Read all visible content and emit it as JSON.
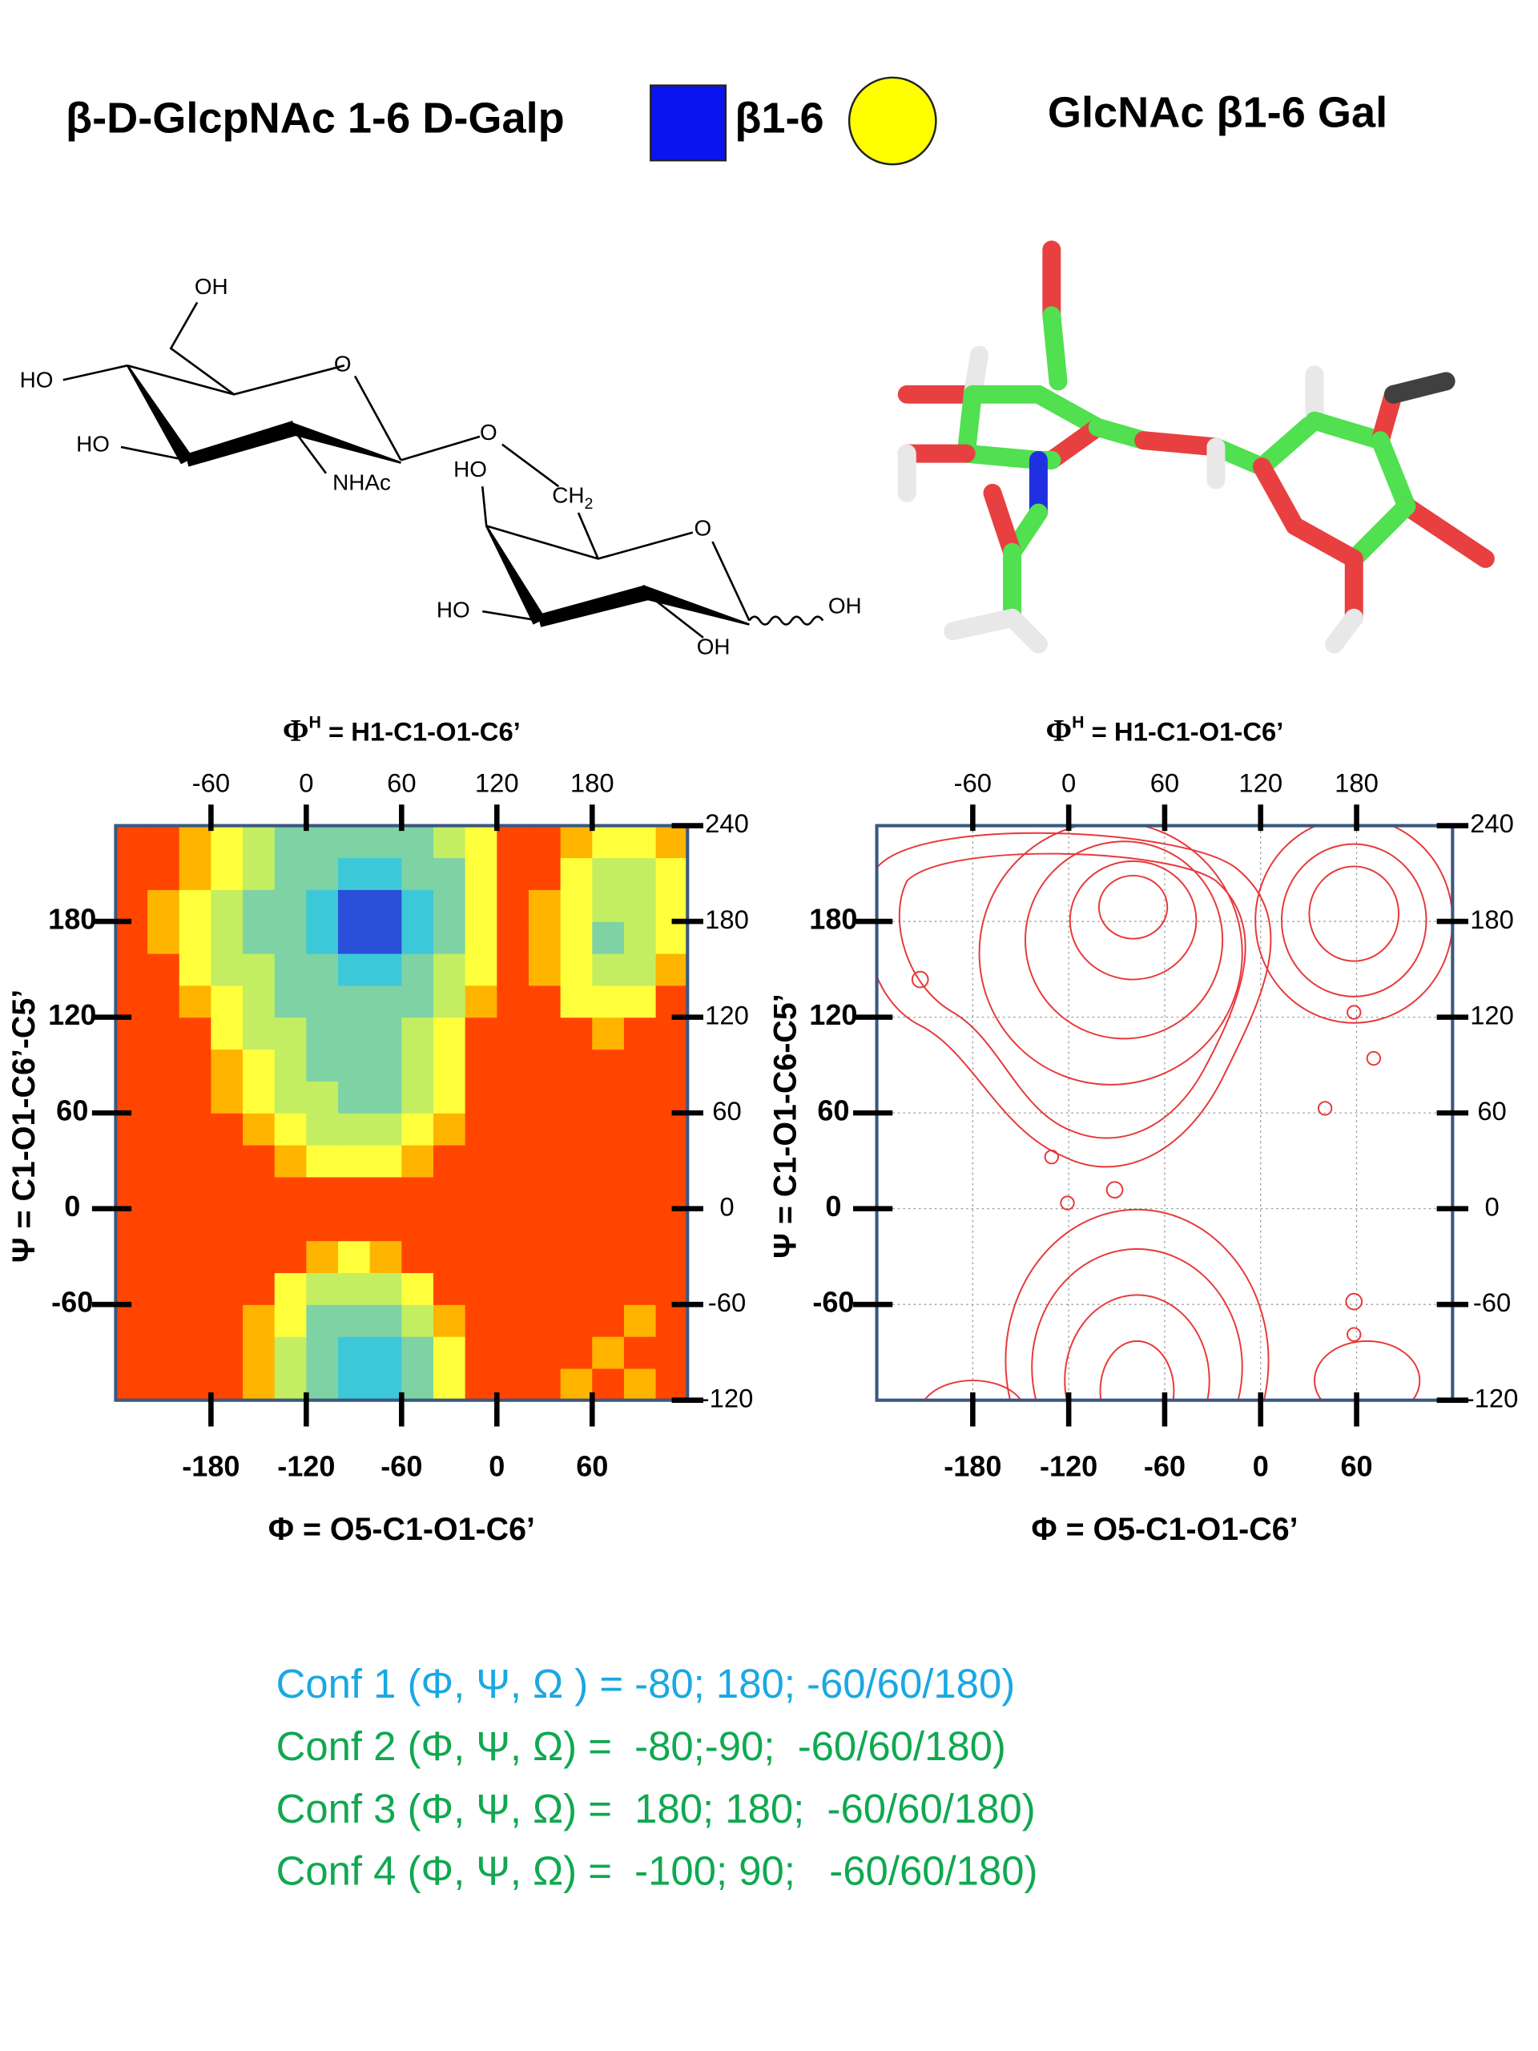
{
  "header": {
    "left": "β-D-GlcpNAc 1-6 D-Galp",
    "linkage": "β1-6",
    "right": "GlcNAc β1-6 Gal"
  },
  "structure": {
    "labels": [
      "OH",
      "HO",
      "O",
      "HO",
      "NHAc",
      "O",
      "HO",
      "O",
      "HO",
      "OH",
      "OH"
    ],
    "ch": "CH",
    "sub": "2"
  },
  "chart_data": [
    {
      "type": "heatmap",
      "x2label": {
        "symbol": "Φ",
        "sup": "H",
        "rest": " = H1-C1-O1-C6’"
      },
      "xlabel": "Φ = O5-C1-O1-C6’",
      "ylabel": "Ψ = C1-O1-C6’-C5’",
      "xlim": [
        -240,
        120
      ],
      "xticks": [
        -180,
        -120,
        -60,
        0,
        60
      ],
      "x2lim": [
        -120,
        240
      ],
      "x2ticks": [
        -60,
        0,
        60,
        120,
        180
      ],
      "ylim": [
        -120,
        240
      ],
      "yticks": [
        180,
        120,
        60,
        0,
        -60
      ],
      "y2lim": [
        -120,
        240
      ],
      "y2ticks": [
        240,
        180,
        120,
        60,
        0,
        -60,
        -120
      ],
      "grid": false,
      "colorscale": [
        "#2a4fd8",
        "#3cc8d8",
        "#7fd2a4",
        "#c4ee62",
        "#ffff3c",
        "#ffb400",
        "#ff4500"
      ],
      "x": [
        -230,
        -210,
        -190,
        -170,
        -150,
        -130,
        -110,
        -90,
        -70,
        -50,
        -30,
        -10,
        10,
        30,
        50,
        70,
        90,
        110
      ],
      "y": [
        -110,
        -90,
        -70,
        -50,
        -30,
        -10,
        10,
        30,
        50,
        70,
        90,
        110,
        130,
        150,
        170,
        190,
        210,
        230
      ],
      "z": [
        [
          6,
          6,
          6,
          6,
          5,
          3,
          2,
          1,
          1,
          2,
          4,
          6,
          6,
          6,
          5,
          6,
          5,
          6
        ],
        [
          6,
          6,
          6,
          6,
          5,
          3,
          2,
          1,
          1,
          2,
          4,
          6,
          6,
          6,
          6,
          5,
          6,
          6
        ],
        [
          6,
          6,
          6,
          6,
          5,
          4,
          2,
          2,
          2,
          3,
          5,
          6,
          6,
          6,
          6,
          6,
          5,
          6
        ],
        [
          6,
          6,
          6,
          6,
          6,
          4,
          3,
          3,
          3,
          4,
          6,
          6,
          6,
          6,
          6,
          6,
          6,
          6
        ],
        [
          6,
          6,
          6,
          6,
          6,
          6,
          5,
          4,
          5,
          6,
          6,
          6,
          6,
          6,
          6,
          6,
          6,
          6
        ],
        [
          6,
          6,
          6,
          6,
          6,
          6,
          6,
          6,
          6,
          6,
          6,
          6,
          6,
          6,
          6,
          6,
          6,
          6
        ],
        [
          6,
          6,
          6,
          6,
          6,
          6,
          6,
          6,
          6,
          6,
          6,
          6,
          6,
          6,
          6,
          6,
          6,
          6
        ],
        [
          6,
          6,
          6,
          6,
          6,
          5,
          4,
          4,
          4,
          5,
          6,
          6,
          6,
          6,
          6,
          6,
          6,
          6
        ],
        [
          6,
          6,
          6,
          6,
          5,
          4,
          3,
          3,
          3,
          4,
          5,
          6,
          6,
          6,
          6,
          6,
          6,
          6
        ],
        [
          6,
          6,
          6,
          5,
          4,
          3,
          3,
          2,
          2,
          3,
          4,
          6,
          6,
          6,
          6,
          6,
          6,
          6
        ],
        [
          6,
          6,
          6,
          5,
          4,
          3,
          2,
          2,
          2,
          3,
          4,
          6,
          6,
          6,
          6,
          6,
          6,
          6
        ],
        [
          6,
          6,
          6,
          4,
          3,
          3,
          2,
          2,
          2,
          3,
          4,
          6,
          6,
          6,
          6,
          5,
          6,
          6
        ],
        [
          6,
          6,
          5,
          4,
          3,
          2,
          2,
          2,
          2,
          2,
          3,
          5,
          6,
          6,
          4,
          4,
          4,
          6
        ],
        [
          6,
          6,
          4,
          3,
          3,
          2,
          2,
          1,
          1,
          2,
          3,
          4,
          6,
          5,
          4,
          3,
          3,
          5
        ],
        [
          6,
          5,
          4,
          3,
          2,
          2,
          1,
          0,
          0,
          1,
          2,
          4,
          6,
          5,
          4,
          2,
          3,
          4
        ],
        [
          6,
          5,
          4,
          3,
          2,
          2,
          1,
          0,
          0,
          1,
          2,
          4,
          6,
          5,
          4,
          3,
          3,
          4
        ],
        [
          6,
          6,
          5,
          4,
          3,
          2,
          2,
          1,
          1,
          2,
          2,
          4,
          6,
          6,
          4,
          3,
          3,
          4
        ],
        [
          6,
          6,
          5,
          4,
          3,
          2,
          2,
          2,
          2,
          2,
          3,
          4,
          6,
          6,
          5,
          4,
          4,
          5
        ]
      ]
    },
    {
      "type": "contour",
      "x2label": {
        "symbol": "Φ",
        "sup": "H",
        "rest": " = H1-C1-O1-C6’"
      },
      "xlabel": "Φ = O5-C1-O1-C6’",
      "ylabel": "Ψ = C1-O1-C6-C5’",
      "xlim": [
        -240,
        120
      ],
      "xticks": [
        -180,
        -120,
        -60,
        0,
        60
      ],
      "x2lim": [
        -120,
        240
      ],
      "x2ticks": [
        -60,
        0,
        60,
        120,
        180
      ],
      "ylim": [
        -120,
        240
      ],
      "yticks": [
        180,
        120,
        60,
        0,
        -60
      ],
      "y2lim": [
        -120,
        240
      ],
      "y2ticks": [
        240,
        180,
        120,
        60,
        0,
        -60,
        -120
      ],
      "grid": true,
      "color": "#e8383a"
    }
  ],
  "confs": [
    {
      "text": "Conf 1 (Φ, Ψ, Ω ) = -80; 180; -60/60/180)",
      "color": "#1aa8e2"
    },
    {
      "text": "Conf 2 (Φ, Ψ, Ω) =  -80;-90;  -60/60/180)",
      "color": "#10a850"
    },
    {
      "text": "Conf 3 (Φ, Ψ, Ω) =  180; 180;  -60/60/180)",
      "color": "#10a850"
    },
    {
      "text": "Conf 4 (Φ, Ψ, Ω) =  -100; 90;   -60/60/180)",
      "color": "#10a850"
    }
  ]
}
